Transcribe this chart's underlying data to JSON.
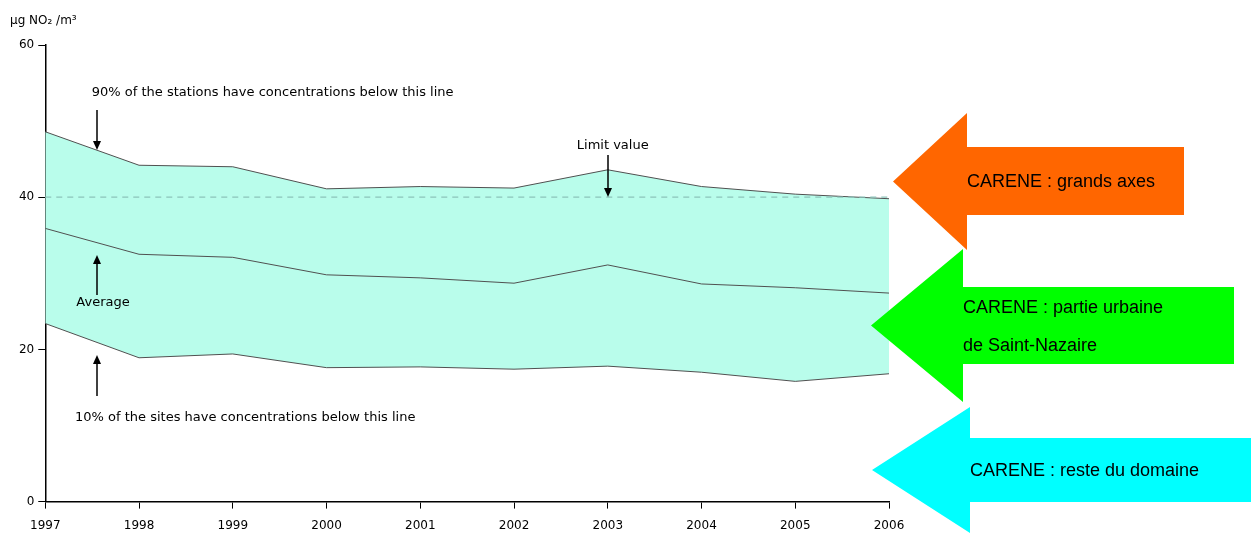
{
  "chart_data": {
    "type": "line",
    "ylabel": "µg NO₂ /m³",
    "x": [
      1997,
      1998,
      1999,
      2000,
      2001,
      2002,
      2003,
      2004,
      2005,
      2006
    ],
    "xlim": [
      1997,
      2006
    ],
    "xticks": [
      1997,
      1998,
      1999,
      2000,
      2001,
      2002,
      2003,
      2004,
      2005,
      2006
    ],
    "ylim": [
      0,
      60
    ],
    "yticks": [
      0,
      20,
      40,
      60
    ],
    "grid": false,
    "legend": false,
    "marker": "none",
    "series": [
      {
        "color": "#505050",
        "values": [
          35.9,
          32.5,
          32.1,
          29.8,
          29.4,
          28.7,
          31.1,
          28.6,
          28.1,
          27.4
        ],
        "lower": [
          23.4,
          18.9,
          19.4,
          17.6,
          17.7,
          17.4,
          17.8,
          17.0,
          15.8,
          16.8
        ],
        "upper": [
          48.6,
          44.2,
          44.0,
          41.1,
          41.4,
          41.2,
          43.6,
          41.4,
          40.4,
          39.8
        ]
      },
      {
        "color": "#505050",
        "values": [
          48.6,
          44.2,
          44.0,
          41.1,
          41.4,
          41.2,
          43.6,
          41.4,
          40.4,
          39.8
        ]
      },
      {
        "color": "#505050",
        "values": [
          23.4,
          18.9,
          19.4,
          17.6,
          17.7,
          17.4,
          17.8,
          17.0,
          15.8,
          16.8
        ]
      }
    ],
    "ref_lines": [
      {
        "axis": "y",
        "value": 40,
        "color": "#8cc4ba",
        "line_style": "dashed"
      }
    ],
    "annotations": [
      {
        "text": "90% of the stations have concentrations below this line",
        "x": 1997.55,
        "y": 46.2
      },
      "Average",
      "10% of the sites have concentrations below this line",
      {
        "text": "Limit value",
        "x": 2003,
        "y": 40
      },
      "CARENE : grands axes",
      "CARENE : partie urbaine de Saint-Nazaire",
      "CARENE : reste du domaine"
    ]
  }
}
